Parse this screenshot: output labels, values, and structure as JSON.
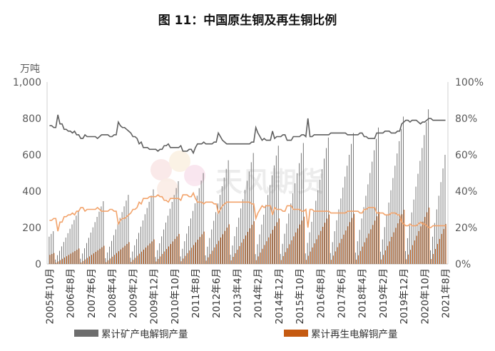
{
  "chart_title": "图 11：中国原生铜及再生铜比例",
  "watermark": "天风期货",
  "chart_data": {
    "type": "bar+line",
    "y_left_unit": "万吨",
    "y_left_ticks": [
      "0",
      "200",
      "400",
      "600",
      "800",
      "1,000"
    ],
    "y_left_range": [
      0,
      1000
    ],
    "y_right_ticks": [
      "0%",
      "20%",
      "40%",
      "60%",
      "80%",
      "100%"
    ],
    "y_right_range": [
      0,
      1
    ],
    "x_tick_labels": [
      "2005年10月",
      "2006年8月",
      "2007年6月",
      "2008年4月",
      "2009年2月",
      "2009年12月",
      "2010年10月",
      "2011年8月",
      "2012年6月",
      "2013年4月",
      "2014年2月",
      "2014年12月",
      "2015年10月",
      "2016年8月",
      "2017年6月",
      "2018年4月",
      "2019年2月",
      "2019年12月",
      "2020年10月",
      "2021年8月"
    ],
    "years": [
      2005,
      2006,
      2007,
      2008,
      2009,
      2010,
      2011,
      2012,
      2013,
      2014,
      2015,
      2016,
      2017,
      2018,
      2019,
      2020,
      2021
    ],
    "first_month": 10,
    "last_month": 8,
    "annual_primary": [
      180,
      290,
      345,
      380,
      410,
      455,
      500,
      570,
      610,
      650,
      665,
      695,
      720,
      750,
      810,
      850,
      900
    ],
    "annual_recycled": [
      60,
      85,
      100,
      120,
      135,
      165,
      178,
      218,
      235,
      250,
      260,
      272,
      276,
      286,
      298,
      310,
      330
    ],
    "primary_share_pct": [
      76,
      76,
      75,
      75,
      82,
      77,
      74,
      74,
      73,
      73,
      72,
      73,
      71,
      71,
      69,
      71,
      70,
      70,
      70,
      70,
      70,
      69,
      70,
      71,
      71,
      71,
      70,
      70,
      71,
      71,
      78,
      76,
      75,
      74,
      73,
      72,
      70,
      70,
      69,
      66,
      67,
      64,
      64,
      63,
      63,
      63,
      63,
      62,
      63,
      63,
      65,
      66,
      64,
      64,
      64,
      64,
      64,
      65,
      62,
      62,
      63,
      63,
      61,
      64,
      66,
      66,
      66,
      67,
      66,
      66,
      66,
      67,
      67,
      72,
      70,
      68,
      67,
      66,
      66,
      66,
      66,
      66,
      66,
      66,
      66,
      66,
      66,
      67,
      67,
      75,
      72,
      70,
      68,
      69,
      68,
      68,
      73,
      69,
      70,
      70,
      70,
      71,
      71,
      68,
      68,
      70,
      70,
      70,
      70,
      71,
      71,
      70,
      80,
      70,
      71,
      71,
      71,
      71,
      71,
      71,
      71,
      71,
      72,
      72,
      72,
      72,
      72,
      72,
      72,
      71,
      71,
      71,
      71,
      71,
      72,
      72,
      70,
      70,
      69,
      69,
      69,
      72,
      72,
      72,
      72,
      73,
      73,
      73,
      72,
      72,
      73,
      73,
      77,
      78,
      79,
      79,
      78,
      79,
      79,
      78,
      77,
      78,
      78,
      79,
      80,
      80,
      79,
      79,
      79,
      79,
      79,
      79
    ],
    "legend": [
      "累计矿产电解铜产量",
      "累计再生电解铜产量"
    ],
    "colors": {
      "primary": "#6d6d6d",
      "recycled": "#c55a11",
      "primary_line": "#5f5f5f",
      "recycled_line": "#f2a36b"
    }
  }
}
